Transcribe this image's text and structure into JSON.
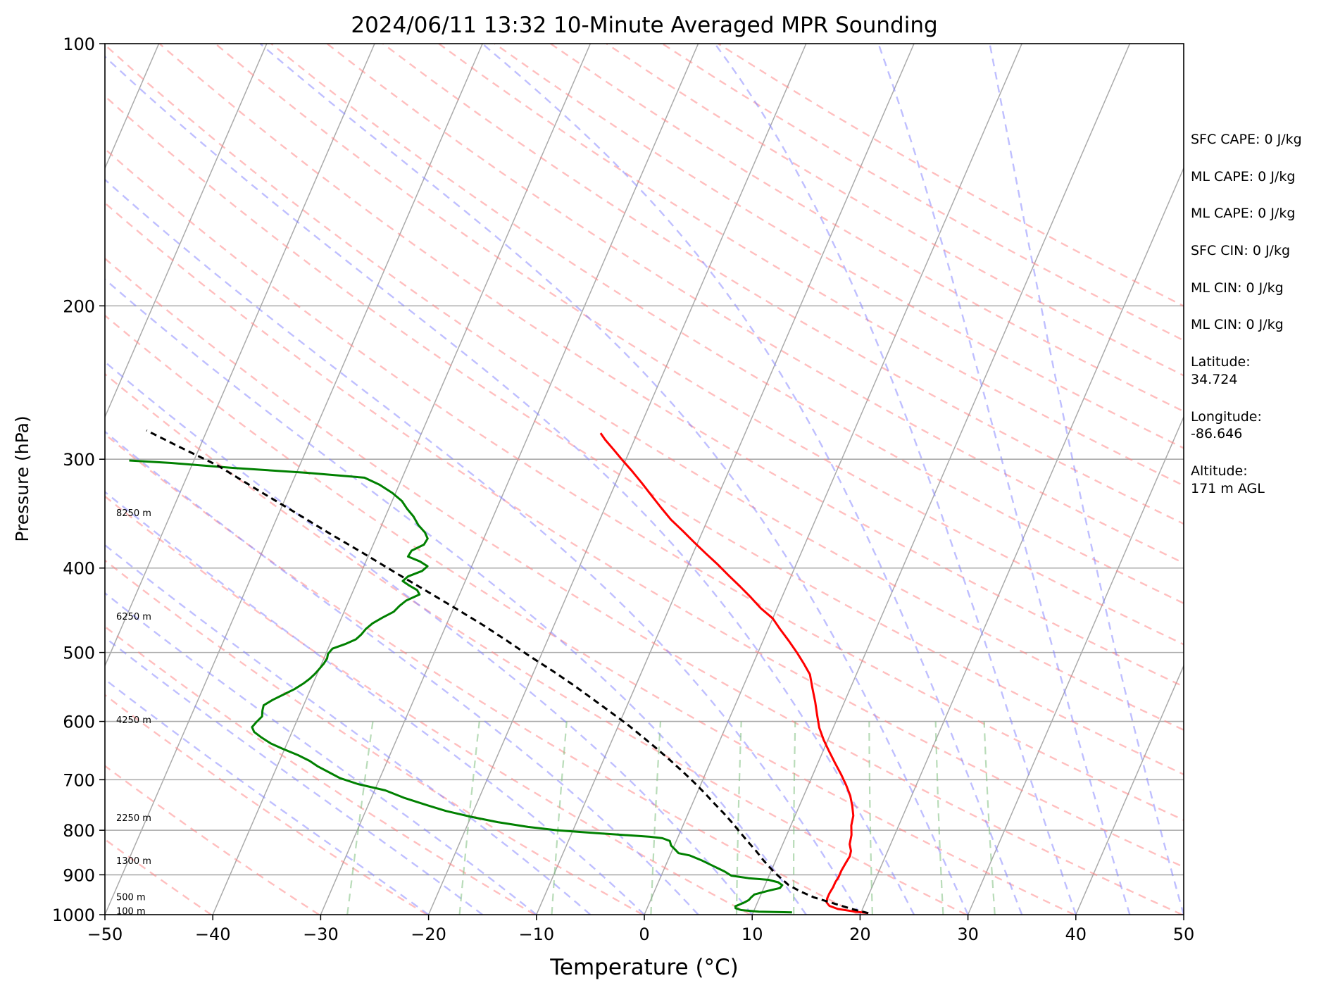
{
  "chart_data": {
    "type": "skew-t",
    "title": "2024/06/11 13:32 10-Minute Averaged MPR Sounding",
    "xlabel": "Temperature (°C)",
    "ylabel": "Pressure (hPa)",
    "xlim": [
      -50,
      50
    ],
    "ylim": [
      1000,
      100
    ],
    "y_scale": "log",
    "x_ticks": [
      -50,
      -40,
      -30,
      -20,
      -10,
      0,
      10,
      20,
      30,
      40,
      50
    ],
    "x_tick_labels": [
      "−50",
      "−40",
      "−30",
      "−20",
      "−10",
      "0",
      "10",
      "20",
      "30",
      "40",
      "50"
    ],
    "y_ticks": [
      1000,
      900,
      800,
      700,
      600,
      500,
      400,
      300,
      200,
      100
    ],
    "y_tick_labels": [
      "1000",
      "900",
      "800",
      "700",
      "600",
      "500",
      "400",
      "300",
      "200",
      "100"
    ],
    "grid": true,
    "height_labels": [
      {
        "text": "100 m",
        "p": 992
      },
      {
        "text": "500 m",
        "p": 955
      },
      {
        "text": "1300 m",
        "p": 868
      },
      {
        "text": "2250 m",
        "p": 775
      },
      {
        "text": "4250 m",
        "p": 598
      },
      {
        "text": "6250 m",
        "p": 455
      },
      {
        "text": "8250 m",
        "p": 346
      }
    ],
    "series": [
      {
        "color": "#ff0000",
        "style": "solid",
        "points": [
          [
            20.7,
            996
          ],
          [
            19.4,
            992
          ],
          [
            17.7,
            985
          ],
          [
            16.8,
            977
          ],
          [
            16.4,
            968
          ],
          [
            16.3,
            958
          ],
          [
            16.3,
            945
          ],
          [
            16.4,
            930
          ],
          [
            16.4,
            918
          ],
          [
            16.5,
            905
          ],
          [
            16.5,
            890
          ],
          [
            16.6,
            872
          ],
          [
            16.7,
            857
          ],
          [
            16.6,
            845
          ],
          [
            16.2,
            830
          ],
          [
            16.0,
            810
          ],
          [
            15.6,
            790
          ],
          [
            15.4,
            770
          ],
          [
            14.9,
            750
          ],
          [
            14.3,
            730
          ],
          [
            13.5,
            710
          ],
          [
            12.6,
            690
          ],
          [
            11.6,
            670
          ],
          [
            10.6,
            650
          ],
          [
            9.6,
            630
          ],
          [
            8.7,
            610
          ],
          [
            8.0,
            590
          ],
          [
            7.3,
            570
          ],
          [
            6.5,
            550
          ],
          [
            5.7,
            530
          ],
          [
            4.7,
            515
          ],
          [
            3.6,
            500
          ],
          [
            2.4,
            485
          ],
          [
            1.1,
            470
          ],
          [
            0.0,
            457
          ],
          [
            -1.5,
            445
          ],
          [
            -2.9,
            432
          ],
          [
            -4.3,
            420
          ],
          [
            -5.8,
            408
          ],
          [
            -7.3,
            396
          ],
          [
            -8.8,
            385
          ],
          [
            -10.3,
            374
          ],
          [
            -11.8,
            363
          ],
          [
            -13.4,
            352
          ],
          [
            -14.8,
            341
          ],
          [
            -16.2,
            330
          ],
          [
            -17.5,
            320
          ],
          [
            -18.9,
            310
          ],
          [
            -20.4,
            300
          ],
          [
            -21.6,
            292
          ],
          [
            -22.7,
            285
          ],
          [
            -23.4,
            280
          ]
        ]
      },
      {
        "color": "#008000",
        "style": "solid",
        "points": [
          [
            13.6,
            994
          ],
          [
            10.5,
            992
          ],
          [
            8.8,
            988
          ],
          [
            8.2,
            983
          ],
          [
            8.1,
            978
          ],
          [
            8.4,
            974
          ],
          [
            8.8,
            968
          ],
          [
            9.1,
            962
          ],
          [
            9.2,
            956
          ],
          [
            9.4,
            948
          ],
          [
            10.5,
            939
          ],
          [
            11.5,
            932
          ],
          [
            11.6,
            925
          ],
          [
            11.1,
            918
          ],
          [
            10.1,
            912
          ],
          [
            8.2,
            908
          ],
          [
            6.5,
            902
          ],
          [
            5.7,
            892
          ],
          [
            4.5,
            880
          ],
          [
            3.2,
            867
          ],
          [
            1.8,
            855
          ],
          [
            0.7,
            850
          ],
          [
            0.3,
            843
          ],
          [
            -0.3,
            833
          ],
          [
            -0.6,
            823
          ],
          [
            -1.4,
            817
          ],
          [
            -2.6,
            814
          ],
          [
            -4.4,
            811
          ],
          [
            -7.8,
            806
          ],
          [
            -11.5,
            800
          ],
          [
            -14.3,
            793
          ],
          [
            -17.3,
            783
          ],
          [
            -20.0,
            772
          ],
          [
            -22.6,
            760
          ],
          [
            -24.5,
            749
          ],
          [
            -27.0,
            734
          ],
          [
            -29.0,
            720
          ],
          [
            -31.8,
            708
          ],
          [
            -33.7,
            697
          ],
          [
            -35.0,
            686
          ],
          [
            -36.2,
            676
          ],
          [
            -37.2,
            666
          ],
          [
            -38.5,
            656
          ],
          [
            -40.2,
            645
          ],
          [
            -41.5,
            636
          ],
          [
            -42.6,
            626
          ],
          [
            -43.5,
            617
          ],
          [
            -43.9,
            609
          ],
          [
            -43.7,
            601
          ],
          [
            -43.4,
            592
          ],
          [
            -43.6,
            583
          ],
          [
            -43.7,
            575
          ],
          [
            -43.1,
            567
          ],
          [
            -42.3,
            559
          ],
          [
            -41.5,
            551
          ],
          [
            -40.9,
            543
          ],
          [
            -40.5,
            536
          ],
          [
            -40.2,
            529
          ],
          [
            -40.0,
            522
          ],
          [
            -39.8,
            515
          ],
          [
            -39.7,
            508
          ],
          [
            -39.8,
            502
          ],
          [
            -39.6,
            495
          ],
          [
            -38.6,
            489
          ],
          [
            -37.8,
            483
          ],
          [
            -37.5,
            477
          ],
          [
            -37.3,
            470
          ],
          [
            -36.9,
            463
          ],
          [
            -36.2,
            456
          ],
          [
            -35.4,
            449
          ],
          [
            -35.1,
            442
          ],
          [
            -34.7,
            436
          ],
          [
            -33.7,
            429
          ],
          [
            -34.1,
            424
          ],
          [
            -35.0,
            419
          ],
          [
            -35.8,
            414
          ],
          [
            -35.5,
            409
          ],
          [
            -34.4,
            403
          ],
          [
            -34.1,
            398
          ],
          [
            -35.0,
            393
          ],
          [
            -36.3,
            388
          ],
          [
            -36.2,
            382
          ],
          [
            -35.3,
            376
          ],
          [
            -35.2,
            370
          ],
          [
            -35.7,
            364
          ],
          [
            -36.6,
            357
          ],
          [
            -37.4,
            349
          ],
          [
            -38.3,
            342
          ],
          [
            -39.1,
            335
          ],
          [
            -40.3,
            328
          ],
          [
            -41.8,
            321
          ],
          [
            -43.5,
            315
          ],
          [
            -49.0,
            311
          ],
          [
            -56.0,
            307
          ],
          [
            -62.0,
            303
          ],
          [
            -66.0,
            301
          ]
        ]
      },
      {
        "color": "#000000",
        "style": "dashed",
        "points": [
          [
            20.7,
            996
          ],
          [
            19.0,
            985
          ],
          [
            17.0,
            970
          ],
          [
            15.0,
            955
          ],
          [
            13.5,
            940
          ],
          [
            12.2,
            925
          ],
          [
            11.3,
            910
          ],
          [
            10.4,
            895
          ],
          [
            9.6,
            880
          ],
          [
            8.8,
            865
          ],
          [
            7.8,
            845
          ],
          [
            6.7,
            825
          ],
          [
            5.6,
            805
          ],
          [
            4.5,
            785
          ],
          [
            3.3,
            765
          ],
          [
            2.0,
            745
          ],
          [
            0.7,
            725
          ],
          [
            -0.7,
            705
          ],
          [
            -2.2,
            685
          ],
          [
            -3.8,
            665
          ],
          [
            -5.5,
            645
          ],
          [
            -7.3,
            625
          ],
          [
            -9.2,
            605
          ],
          [
            -11.3,
            585
          ],
          [
            -13.5,
            565
          ],
          [
            -15.8,
            545
          ],
          [
            -18.3,
            525
          ],
          [
            -21.0,
            505
          ],
          [
            -23.7,
            485
          ],
          [
            -26.6,
            465
          ],
          [
            -29.8,
            445
          ],
          [
            -33.2,
            425
          ],
          [
            -36.8,
            405
          ],
          [
            -40.5,
            385
          ],
          [
            -44.5,
            365
          ],
          [
            -48.6,
            345
          ],
          [
            -53.0,
            325
          ],
          [
            -57.6,
            305
          ],
          [
            -62.0,
            290
          ],
          [
            -65.6,
            278
          ]
        ]
      }
    ]
  },
  "info_panel": {
    "sfc_cape": "SFC CAPE: 0 J/kg",
    "ml_cape": "ML CAPE: 0 J/kg",
    "ml_cape_2": "ML CAPE: 0 J/kg",
    "sfc_cin": "SFC CIN: 0 J/kg",
    "ml_cin": "ML CIN: 0 J/kg",
    "ml_cin_2": "ML CIN: 0 J/kg",
    "latitude": "Latitude:\n34.724",
    "longitude": "Longitude:\n-86.646",
    "altitude": "Altitude:\n171 m AGL"
  },
  "colors": {
    "isotherm": "#aaaaaa",
    "dry_adiabat": "#ff8080",
    "moist_adiabat": "#8080ff",
    "mixing_ratio": "#80c080",
    "temperature": "#ff0000",
    "dewpoint": "#008000",
    "parcel": "#000000"
  }
}
